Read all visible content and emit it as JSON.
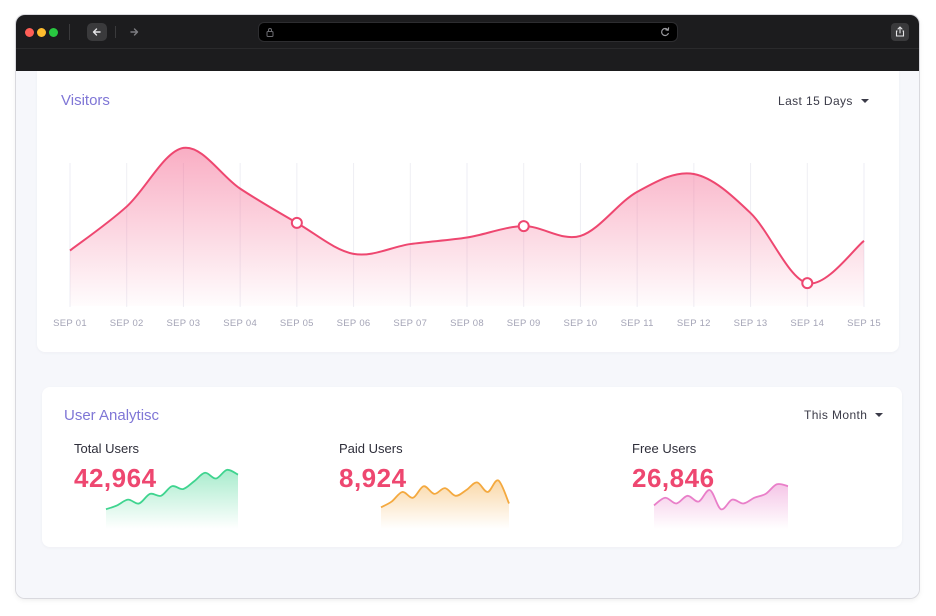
{
  "browser": {
    "back_icon": "arrow-left-icon",
    "forward_icon": "arrow-right-icon",
    "lock_icon": "lock-icon",
    "reload_icon": "reload-icon",
    "share_icon": "share-icon"
  },
  "visitors": {
    "title": "Visitors",
    "range_label": "Last 15 Days"
  },
  "chart_data": {
    "type": "area",
    "title": "Visitors",
    "categories": [
      "SEP 01",
      "SEP 02",
      "SEP 03",
      "SEP 04",
      "SEP 05",
      "SEP 06",
      "SEP 07",
      "SEP 08",
      "SEP 09",
      "SEP 10",
      "SEP 11",
      "SEP 12",
      "SEP 13",
      "SEP 14",
      "SEP 15"
    ],
    "values": [
      34,
      61,
      97,
      72,
      51,
      32,
      38,
      42,
      49,
      43,
      70,
      81,
      57,
      14,
      40
    ],
    "ylim": [
      0,
      100
    ],
    "grid": "vertical",
    "legend": "none",
    "highlighted_points": [
      "SEP 05",
      "SEP 09",
      "SEP 14"
    ],
    "line_color": "#ee4770"
  },
  "analytics": {
    "title": "User Analytisc",
    "range_label": "This Month",
    "stats": [
      {
        "label": "Total Users",
        "value": "42,964",
        "color": "#3fd48f",
        "spark": [
          6,
          10,
          16,
          12,
          22,
          20,
          30,
          27,
          35,
          44,
          38,
          47,
          42
        ]
      },
      {
        "label": "Paid Users",
        "value": "8,924",
        "color": "#f4a93f",
        "spark": [
          8,
          14,
          24,
          18,
          30,
          22,
          28,
          20,
          26,
          34,
          24,
          36,
          12
        ]
      },
      {
        "label": "Free Users",
        "value": "26,846",
        "color": "#e97fc9",
        "spark": [
          10,
          18,
          12,
          20,
          14,
          26,
          6,
          16,
          12,
          18,
          22,
          32,
          30
        ]
      }
    ]
  }
}
